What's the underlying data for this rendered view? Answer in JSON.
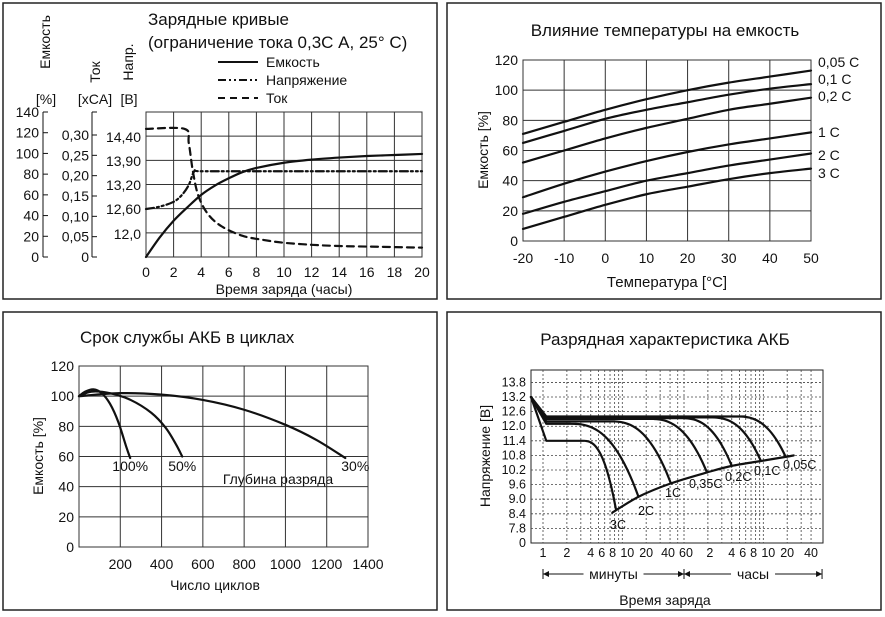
{
  "chart_data": [
    {
      "type": "line",
      "title": "Зарядные кривые",
      "subtitle": "(ограничение тока 0,3С А, 25° С)",
      "xlabel": "Время заряда (часы)",
      "xlim": [
        0,
        20
      ],
      "x_ticks": [
        "0",
        "2",
        "4",
        "6",
        "8",
        "10",
        "12",
        "14",
        "16",
        "18",
        "20"
      ],
      "axes": {
        "capacity": {
          "label": "Емкость",
          "unit": "[%]",
          "ylim": [
            0,
            140
          ],
          "ticks": [
            "0",
            "20",
            "40",
            "60",
            "80",
            "100",
            "120",
            "140"
          ]
        },
        "current": {
          "label": "Ток",
          "unit": "[xCA]",
          "ylim": [
            0,
            0.3
          ],
          "ticks": [
            "0",
            "0,05",
            "0,10",
            "0,15",
            "0,20",
            "0,25",
            "0,30"
          ]
        },
        "voltage": {
          "label": "Напр.",
          "unit": "[В]",
          "ticks": [
            "12,0",
            "12,60",
            "13,20",
            "13,90",
            "14,40"
          ]
        }
      },
      "legend": [
        "Емкость",
        "Напряжение",
        "Ток"
      ],
      "series": [
        {
          "name": "Емкость",
          "axis": "capacity",
          "style": "solid",
          "x": [
            0,
            1,
            2,
            3,
            4,
            5,
            6,
            7,
            8,
            10,
            12,
            14,
            16,
            18,
            20
          ],
          "y": [
            0,
            19,
            35,
            48,
            60,
            69,
            76,
            82,
            86,
            91,
            94,
            96,
            97.5,
            98.5,
            99.5
          ]
        },
        {
          "name": "Напряжение",
          "axis": "voltage",
          "style": "dash-dot-dot",
          "x": [
            0,
            1,
            2,
            2.6,
            3.1,
            3.5,
            4,
            8,
            12,
            16,
            20
          ],
          "y": [
            12.6,
            12.66,
            12.78,
            12.95,
            13.2,
            13.6,
            13.6,
            13.6,
            13.6,
            13.6,
            13.6
          ]
        },
        {
          "name": "Ток",
          "axis": "current",
          "style": "dashed",
          "x": [
            0,
            2.8,
            3.1,
            3.4,
            3.8,
            4.5,
            5.5,
            7,
            8.5,
            10,
            12,
            14,
            17,
            20
          ],
          "y": [
            0.315,
            0.315,
            0.28,
            0.21,
            0.15,
            0.105,
            0.075,
            0.052,
            0.042,
            0.035,
            0.03,
            0.027,
            0.025,
            0.023
          ]
        }
      ]
    },
    {
      "type": "line",
      "title": "Влияние температуры на емкость",
      "xlabel": "Температура [°C]",
      "ylabel": "Емкость [%]",
      "xlim": [
        -20,
        50
      ],
      "ylim": [
        0,
        120
      ],
      "x_ticks": [
        "-20",
        "-10",
        "0",
        "10",
        "20",
        "30",
        "40",
        "50"
      ],
      "y_ticks": [
        "0",
        "20",
        "40",
        "60",
        "80",
        "100",
        "120"
      ],
      "x": [
        -20,
        -10,
        0,
        10,
        20,
        30,
        40,
        50
      ],
      "series": [
        {
          "name": "0,05 C",
          "values": [
            71,
            79,
            87,
            94,
            100,
            105,
            109,
            113
          ]
        },
        {
          "name": "0,1 C",
          "values": [
            65,
            73,
            81,
            87,
            92,
            97,
            101,
            104
          ]
        },
        {
          "name": "0,2 C",
          "values": [
            52,
            60,
            68,
            75,
            81,
            87,
            91,
            95
          ]
        },
        {
          "name": "1 C",
          "values": [
            29,
            38,
            46,
            53,
            59,
            64,
            68,
            72
          ]
        },
        {
          "name": "2 C",
          "values": [
            18,
            26,
            33,
            40,
            45,
            50,
            54,
            58
          ]
        },
        {
          "name": "3 C",
          "values": [
            8,
            16,
            24,
            31,
            36,
            41,
            45,
            48
          ]
        }
      ]
    },
    {
      "type": "line",
      "title": "Срок службы АКБ в циклах",
      "xlabel": "Число циклов",
      "ylabel": "Емкость [%]",
      "xlim": [
        0,
        1400
      ],
      "ylim": [
        0,
        120
      ],
      "x_ticks": [
        "200",
        "400",
        "600",
        "800",
        "1000",
        "1200",
        "1400"
      ],
      "y_ticks": [
        "0",
        "20",
        "40",
        "60",
        "80",
        "100",
        "120"
      ],
      "annotation": "Глубина разряда",
      "series": [
        {
          "name": "100%",
          "x": [
            0,
            30,
            70,
            110,
            150,
            190,
            230,
            248
          ],
          "y": [
            100,
            103,
            104.5,
            102,
            95,
            83,
            66,
            59
          ]
        },
        {
          "name": "50%",
          "x": [
            0,
            60,
            150,
            250,
            350,
            420,
            470,
            500
          ],
          "y": [
            100,
            103,
            102,
            97.5,
            89,
            79,
            68,
            60
          ]
        },
        {
          "name": "30%",
          "x": [
            0,
            200,
            400,
            600,
            800,
            1000,
            1150,
            1290
          ],
          "y": [
            100,
            102,
            101,
            97.5,
            91,
            81,
            71,
            59
          ]
        }
      ]
    },
    {
      "type": "line",
      "title": "Разрядная характеристика АКБ",
      "xlabel": "Время заряда",
      "ylabel": "Напряжение [В]",
      "x_scale": "log (minutes)",
      "y_ticks": [
        "13.8",
        "13.2",
        "12.6",
        "12.0",
        "11.4",
        "10.8",
        "10.2",
        "9.6",
        "9.0",
        "8.4",
        "7.8",
        "0"
      ],
      "x_ticks_minutes": [
        "1",
        "2",
        "4",
        "6",
        "8",
        "10",
        "20",
        "40",
        "60"
      ],
      "x_ticks_hours": [
        "2",
        "4",
        "6",
        "8",
        "10",
        "20",
        "40"
      ],
      "x_range_labels": {
        "minutes": "минуты",
        "hours": "часы"
      },
      "start_voltage": 13.2,
      "series": [
        {
          "name": "3C",
          "flat_v": 11.4,
          "knee_min": 3.2,
          "end_min": 8.3,
          "end_v": 8.6
        },
        {
          "name": "2C",
          "flat_v": 12.1,
          "knee_min": 2.2,
          "end_min": 16,
          "end_v": 9.1
        },
        {
          "name": "1C",
          "flat_v": 12.2,
          "knee_min": 7,
          "end_min": 41,
          "end_v": 9.65
        },
        {
          "name": "0,35C",
          "flat_v": 12.3,
          "knee_min": 22,
          "end_min": 117,
          "end_v": 10.1
        },
        {
          "name": "0,2C",
          "flat_v": 12.33,
          "knee_min": 55,
          "end_min": 240,
          "end_v": 10.37
        },
        {
          "name": "0,1C",
          "flat_v": 12.36,
          "knee_min": 130,
          "end_min": 560,
          "end_v": 10.57
        },
        {
          "name": "0,05C",
          "flat_v": 12.4,
          "knee_min": 280,
          "end_min": 1150,
          "end_v": 10.74
        }
      ],
      "cutoff_envelope": {
        "minutes": [
          7.5,
          16,
          41,
          117,
          240,
          560,
          1150,
          1450
        ],
        "volts": [
          8.45,
          9.1,
          9.65,
          10.1,
          10.37,
          10.57,
          10.74,
          10.8
        ]
      }
    }
  ]
}
